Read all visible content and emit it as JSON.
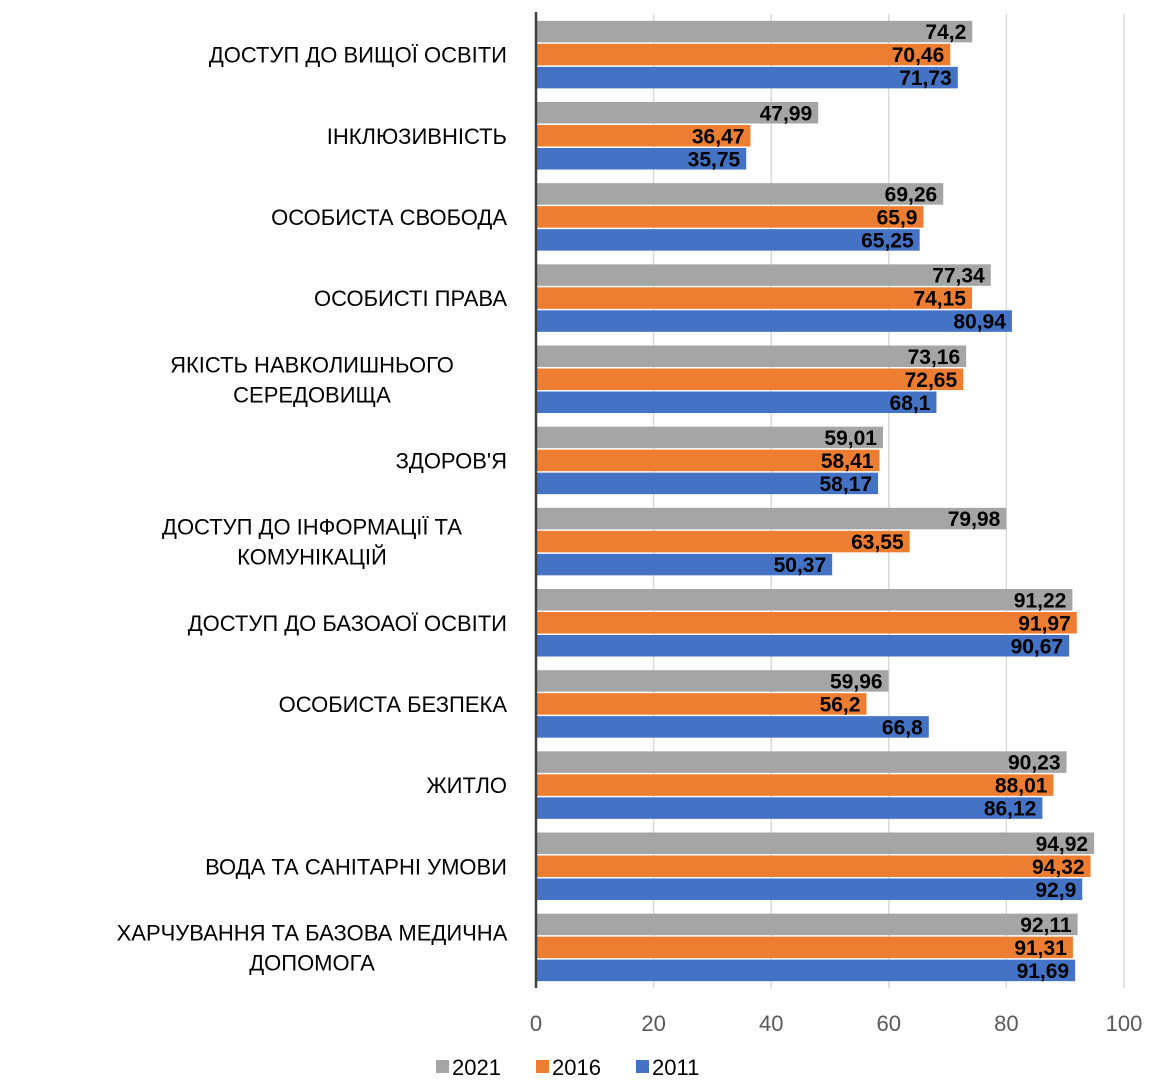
{
  "chart_data": {
    "type": "bar",
    "orientation": "horizontal",
    "categories": [
      [
        "ДОСТУП ДО ВИЩОЇ ОСВІТИ"
      ],
      [
        "ІНКЛЮЗИВНІСТЬ"
      ],
      [
        "ОСОБИСТА СВОБОДА"
      ],
      [
        "ОСОБИСТІ ПРАВА"
      ],
      [
        "ЯКІСТЬ НАВКОЛИШНЬОГО",
        "СЕРЕДОВИЩА"
      ],
      [
        "ЗДОРОВ'Я"
      ],
      [
        "ДОСТУП ДО ІНФОРМАЦІЇ ТА",
        "КОМУНІКАЦІЙ"
      ],
      [
        "ДОСТУП ДО БАЗОАОЇ ОСВІТИ"
      ],
      [
        "ОСОБИСТА БЕЗПЕКА"
      ],
      [
        "ЖИТЛО"
      ],
      [
        "ВОДА ТА САНІТАРНІ УМОВИ"
      ],
      [
        "ХАРЧУВАННЯ ТА БАЗОВА МЕДИЧНА",
        "ДОПОМОГА"
      ]
    ],
    "series": [
      {
        "name": "2021",
        "color": "#a5a5a5",
        "values": [
          74.2,
          47.99,
          69.26,
          77.34,
          73.16,
          59.01,
          79.98,
          91.22,
          59.96,
          90.23,
          94.92,
          92.11
        ],
        "labels": [
          "74,2",
          "47,99",
          "69,26",
          "77,34",
          "73,16",
          "59,01",
          "79,98",
          "91,22",
          "59,96",
          "90,23",
          "94,92",
          "92,11"
        ]
      },
      {
        "name": "2016",
        "color": "#ed7d31",
        "values": [
          70.46,
          36.47,
          65.9,
          74.15,
          72.65,
          58.41,
          63.55,
          91.97,
          56.2,
          88.01,
          94.32,
          91.31
        ],
        "labels": [
          "70,46",
          "36,47",
          "65,9",
          "74,15",
          "72,65",
          "58,41",
          "63,55",
          "91,97",
          "56,2",
          "88,01",
          "94,32",
          "91,31"
        ]
      },
      {
        "name": "2011",
        "color": "#4472c4",
        "values": [
          71.73,
          35.75,
          65.25,
          80.94,
          68.1,
          58.17,
          50.37,
          90.67,
          66.8,
          86.12,
          92.9,
          91.69
        ],
        "labels": [
          "71,73",
          "35,75",
          "65,25",
          "80,94",
          "68,1",
          "58,17",
          "50,37",
          "90,67",
          "66,8",
          "86,12",
          "92,9",
          "91,69"
        ]
      }
    ],
    "xlim": [
      0,
      100
    ],
    "xticks": [
      0,
      20,
      40,
      60,
      80,
      100
    ],
    "xtick_labels": [
      "0",
      "20",
      "40",
      "60",
      "80",
      "100"
    ],
    "grid": true,
    "legend_position": "bottom",
    "legend_order": [
      "2021",
      "2016",
      "2011"
    ],
    "title": "",
    "xlabel": "",
    "ylabel": ""
  }
}
